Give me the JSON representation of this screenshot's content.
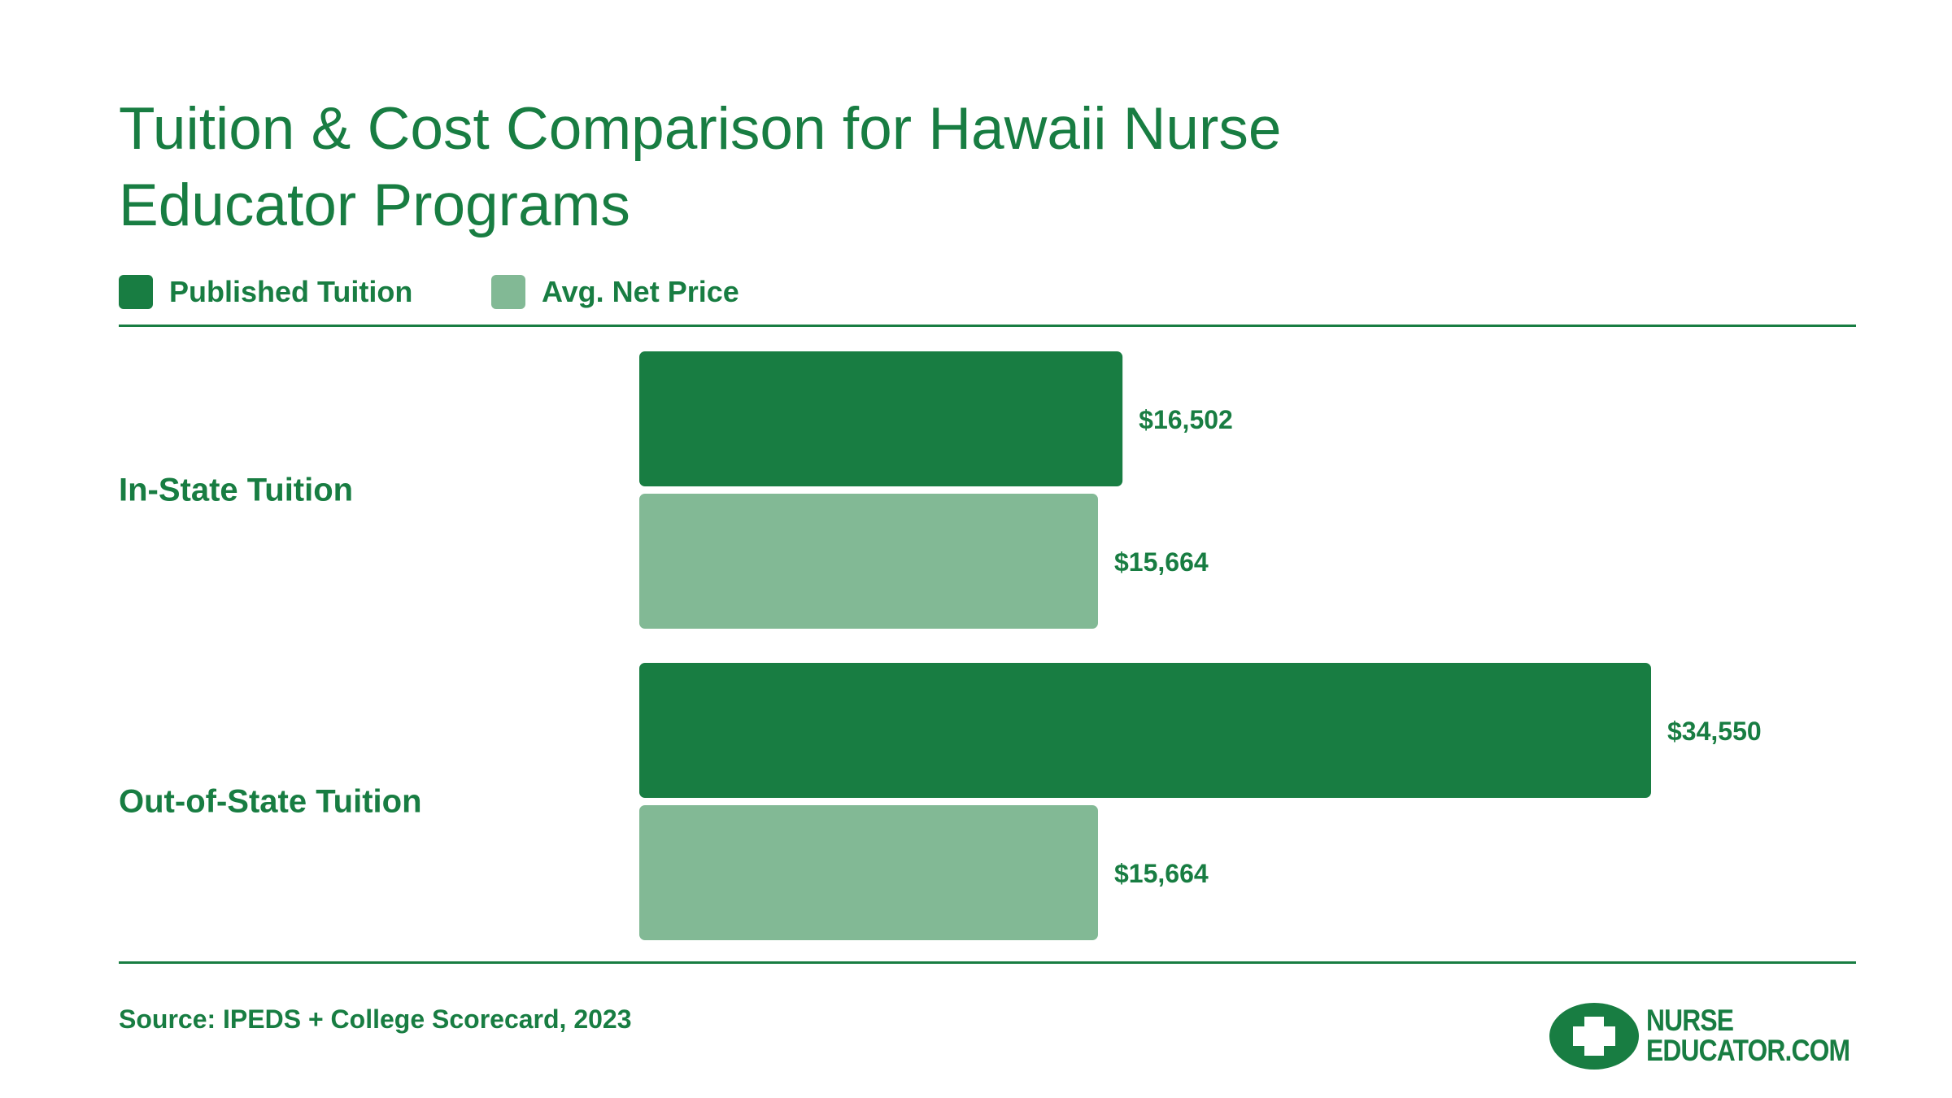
{
  "chart_data": {
    "type": "bar",
    "orientation": "horizontal",
    "title": "Tuition & Cost Comparison for Hawaii Nurse Educator Programs",
    "categories": [
      "In-State Tuition",
      "Out-of-State Tuition"
    ],
    "series": [
      {
        "name": "Published Tuition",
        "values": [
          16502,
          34550
        ],
        "labels": [
          "$16,502",
          "$34,550"
        ],
        "color": "#187d42"
      },
      {
        "name": "Avg. Net Price",
        "values": [
          15664,
          15664
        ],
        "labels": [
          "$15,664",
          "$15,664"
        ],
        "color": "#82b995"
      }
    ],
    "xlim": [
      0,
      34550
    ],
    "grid": false,
    "legend_position": "top-left"
  },
  "source": "Source: IPEDS + College Scorecard, 2023",
  "logo": {
    "line1": "NURSE",
    "line2": "EDUCATOR.COM",
    "icon": "cross-icon"
  },
  "colors": {
    "primary": "#187d42",
    "secondary": "#82b995",
    "background": "#ffffff"
  }
}
